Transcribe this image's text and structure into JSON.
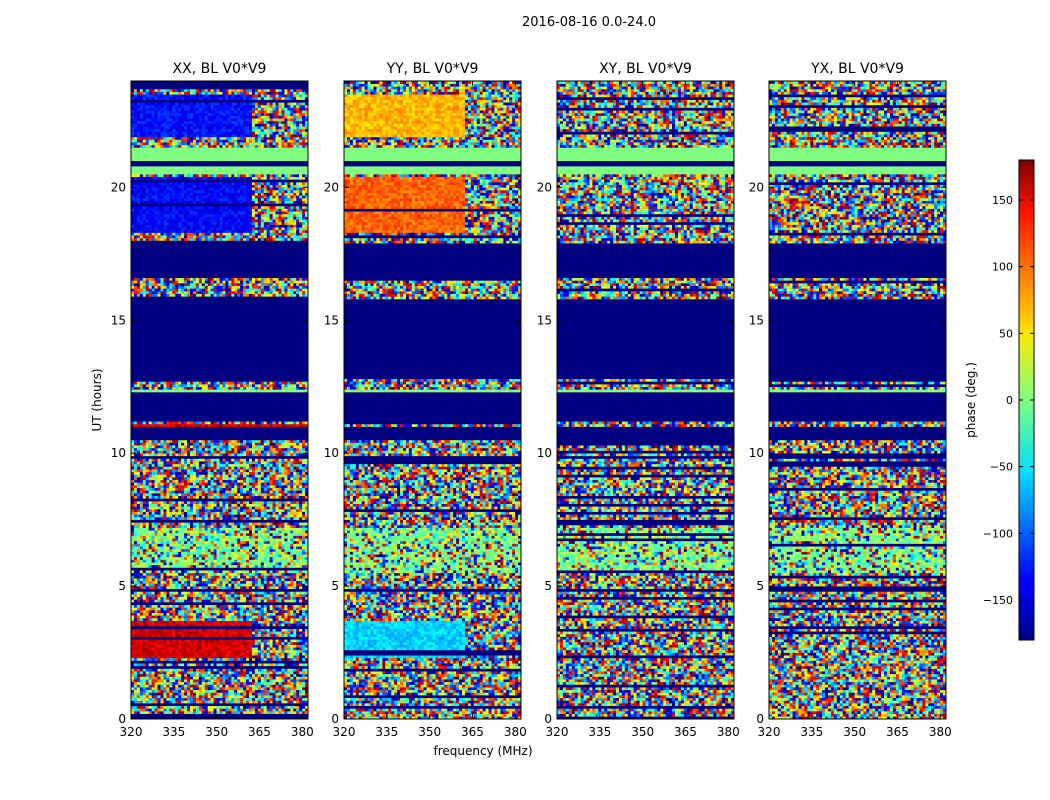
{
  "chart_data": {
    "type": "heatmap",
    "title": "2016-08-16 0.0-24.0",
    "ylabel": "UT (hours)",
    "xlabel": "frequency (MHz)",
    "xlim": [
      320,
      382
    ],
    "ylim": [
      0,
      24
    ],
    "x_ticks": [
      "320",
      "335",
      "350",
      "365",
      "380"
    ],
    "y_ticks": [
      "0",
      "5",
      "10",
      "15",
      "20"
    ],
    "panels": [
      {
        "name": "XX, BL V0*V9"
      },
      {
        "name": "YY, BL V0*V9"
      },
      {
        "name": "XY, BL V0*V9"
      },
      {
        "name": "YX, BL V0*V9"
      }
    ],
    "colorbar": {
      "label": "phase (deg.)",
      "range": [
        -180,
        180
      ],
      "ticks": [
        "150",
        "100",
        "50",
        "0",
        "−50",
        "−100",
        "−150"
      ],
      "colormap": "jet"
    },
    "bands": [
      {
        "from": 21.0,
        "to": 21.5,
        "phase": 0
      },
      {
        "from": 20.8,
        "to": 21.0,
        "phase": -180
      },
      {
        "from": 20.5,
        "to": 20.8,
        "phase": 0
      },
      {
        "from": 16.6,
        "to": 17.9,
        "phase": -180
      },
      {
        "from": 12.8,
        "to": 15.8,
        "phase": -180
      },
      {
        "from": 11.2,
        "to": 12.3,
        "phase": -180
      },
      {
        "from": 12.3,
        "to": 12.4,
        "phase": 0
      },
      {
        "from": 10.5,
        "to": 11.0,
        "phase": -180
      }
    ],
    "structured": [
      {
        "panel": 0,
        "from": 21.9,
        "to": 23.5,
        "phase": -130,
        "to_freq": 362
      },
      {
        "panel": 0,
        "from": 18.3,
        "to": 20.4,
        "phase": -135,
        "to_freq": 362
      },
      {
        "panel": 0,
        "from": 10.6,
        "to": 11.1,
        "phase": 150,
        "to_freq": 382
      },
      {
        "panel": 0,
        "from": 2.3,
        "to": 3.7,
        "phase": 150,
        "to_freq": 362
      },
      {
        "panel": 1,
        "from": 21.9,
        "to": 23.5,
        "phase": 70,
        "to_freq": 362
      },
      {
        "panel": 1,
        "from": 18.3,
        "to": 20.4,
        "phase": 100,
        "to_freq": 362
      },
      {
        "panel": 1,
        "from": 2.3,
        "to": 3.7,
        "phase": -60,
        "to_freq": 362
      }
    ],
    "green_zone": [
      5.5,
      7.2
    ]
  }
}
